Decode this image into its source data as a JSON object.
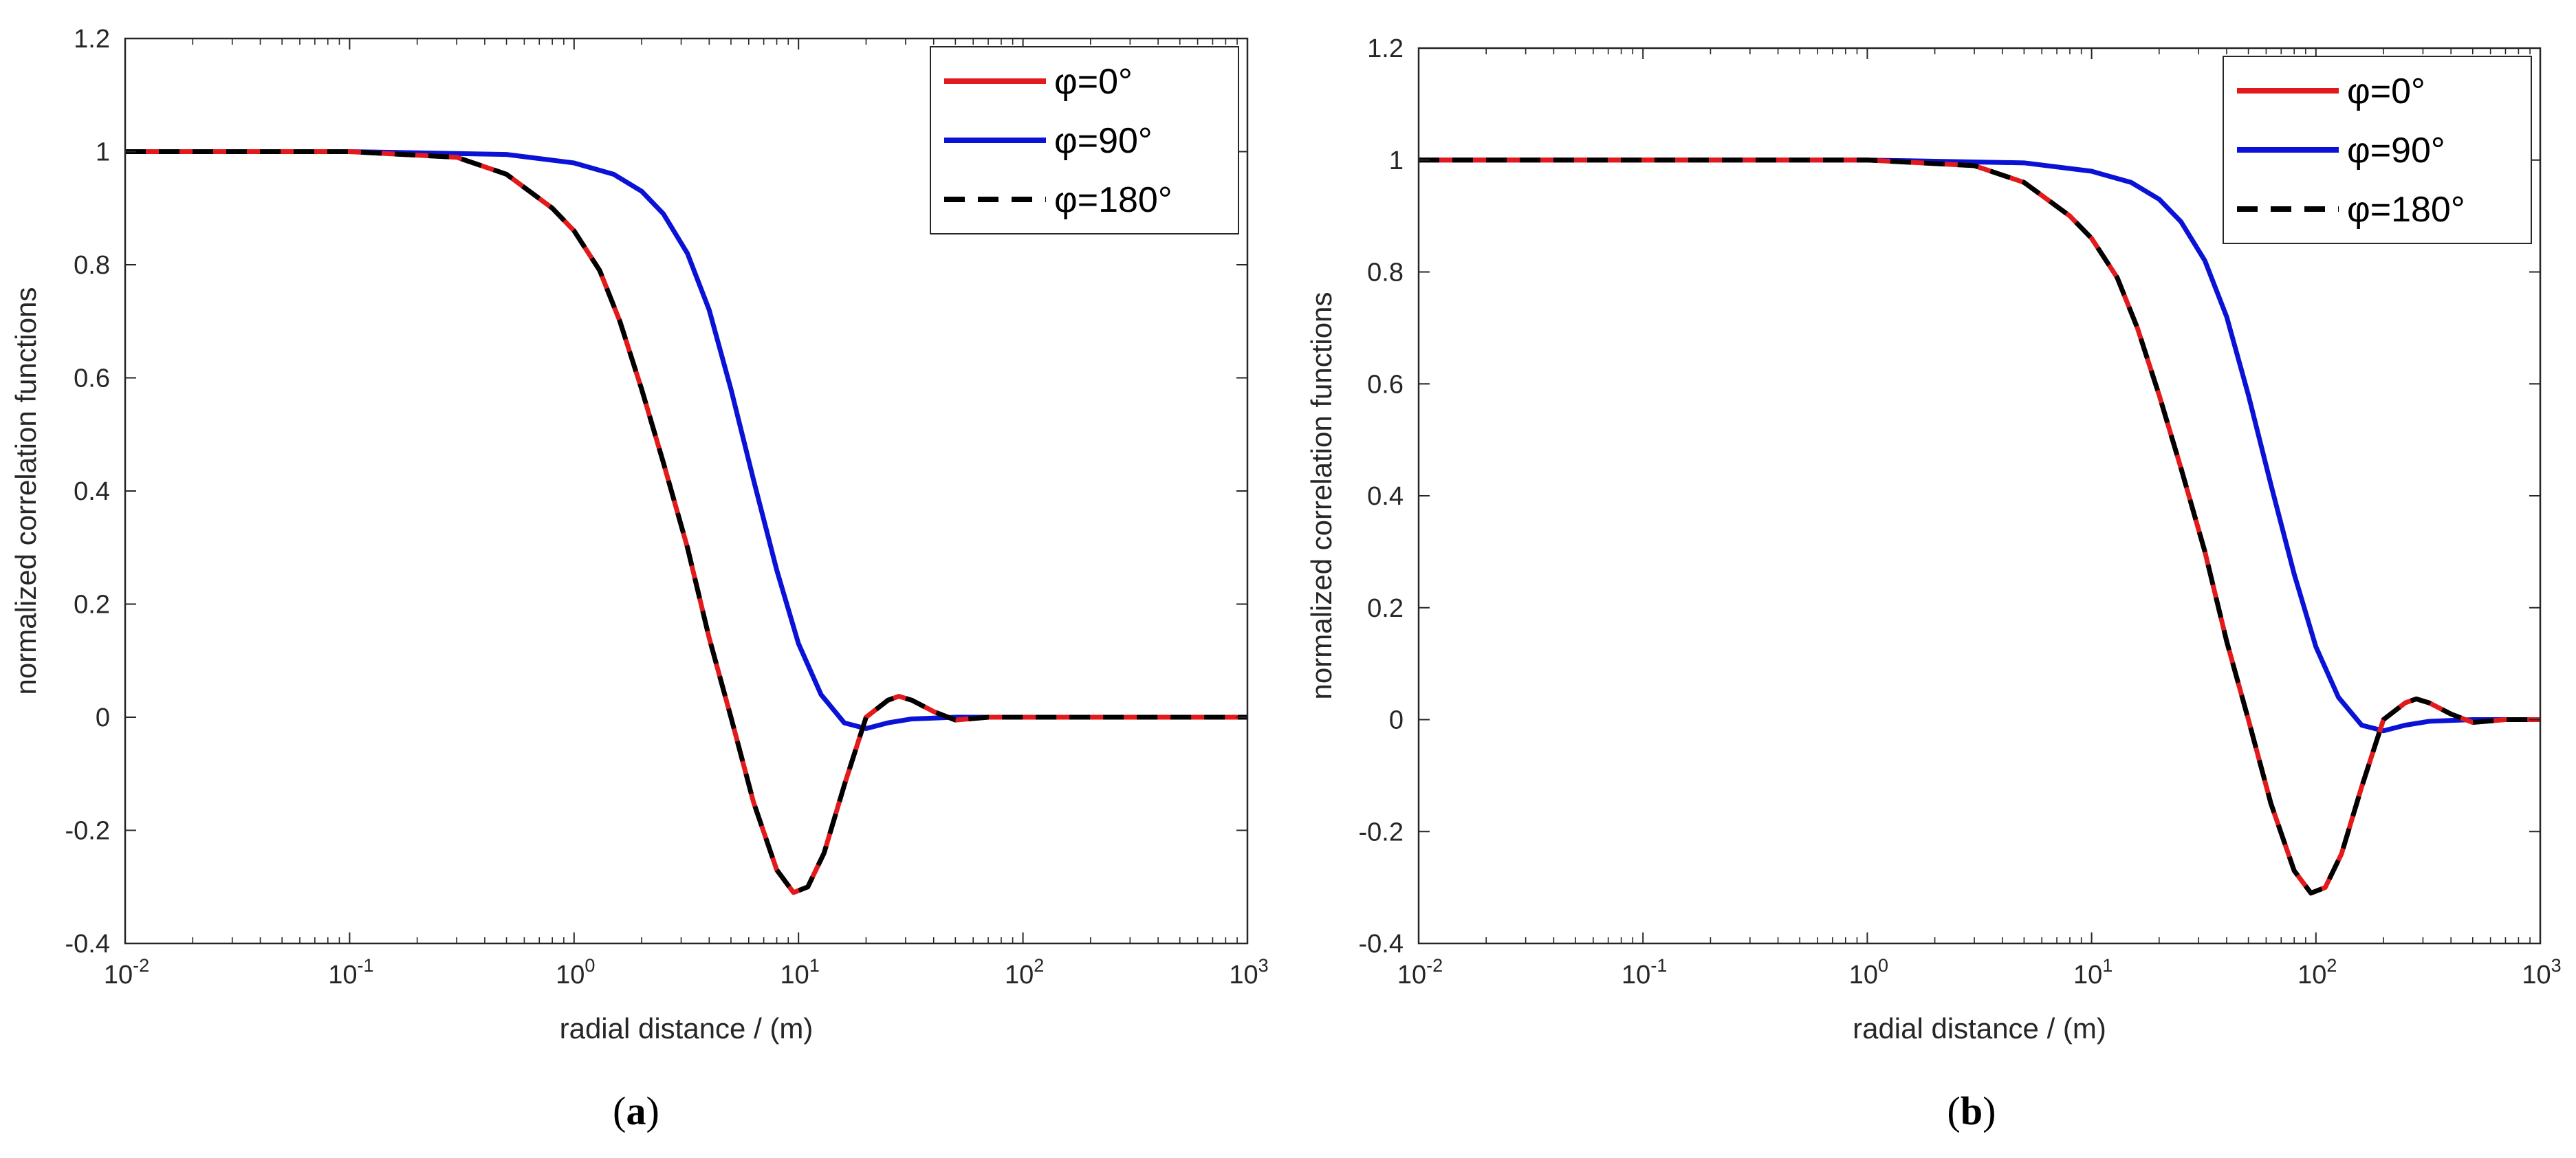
{
  "chart_data": [
    {
      "type": "line",
      "panel_label": "a",
      "xscale": "log",
      "xlim": [
        0.01,
        1000
      ],
      "ylim": [
        -0.4,
        1.2
      ],
      "x_ticks": [
        0.01,
        0.1,
        1,
        10,
        100,
        1000
      ],
      "x_tick_labels": [
        [
          "10",
          "-2"
        ],
        [
          "10",
          "-1"
        ],
        [
          "10",
          "0"
        ],
        [
          "10",
          "1"
        ],
        [
          "10",
          "2"
        ],
        [
          "10",
          "3"
        ]
      ],
      "y_ticks": [
        -0.4,
        -0.2,
        0,
        0.2,
        0.4,
        0.6,
        0.8,
        1,
        1.2
      ],
      "y_tick_labels": [
        "-0.4",
        "-0.2",
        "0",
        "0.2",
        "0.4",
        "0.6",
        "0.8",
        "1",
        "1.2"
      ],
      "xlabel": "radial distance / (m)",
      "ylabel": "normalized correlation functions",
      "legend_position": "top-right",
      "series": [
        {
          "name": "φ=0°",
          "color": "#e31a1c",
          "style": "solid",
          "x": [
            0.01,
            0.1,
            0.3,
            0.5,
            0.8,
            1.0,
            1.3,
            1.6,
            2.0,
            2.5,
            3.2,
            4.0,
            5.0,
            6.3,
            8.0,
            9.5,
            11.0,
            13.0,
            16.0,
            20.0,
            25.0,
            28.0,
            32.0,
            40.0,
            50.0,
            70.0,
            1000.0
          ],
          "y": [
            1.0,
            1.0,
            0.99,
            0.96,
            0.9,
            0.86,
            0.79,
            0.7,
            0.58,
            0.45,
            0.3,
            0.14,
            0.0,
            -0.15,
            -0.27,
            -0.31,
            -0.3,
            -0.24,
            -0.12,
            0.0,
            0.03,
            0.037,
            0.03,
            0.01,
            -0.005,
            0.0,
            0.0
          ]
        },
        {
          "name": "φ=90°",
          "color": "#0a12d6",
          "style": "solid",
          "x": [
            0.01,
            0.1,
            0.5,
            1.0,
            1.5,
            2.0,
            2.5,
            3.2,
            4.0,
            5.0,
            6.3,
            8.0,
            10.0,
            12.6,
            16.0,
            20.0,
            25.0,
            32.0,
            50.0,
            1000.0
          ],
          "y": [
            1.0,
            1.0,
            0.995,
            0.98,
            0.96,
            0.93,
            0.89,
            0.82,
            0.72,
            0.58,
            0.42,
            0.26,
            0.13,
            0.04,
            -0.01,
            -0.02,
            -0.01,
            -0.003,
            0.0,
            0.0
          ]
        },
        {
          "name": "φ=180°",
          "color": "#000000",
          "style": "dashed",
          "x": [
            0.01,
            0.1,
            0.3,
            0.5,
            0.8,
            1.0,
            1.3,
            1.6,
            2.0,
            2.5,
            3.2,
            4.0,
            5.0,
            6.3,
            8.0,
            9.5,
            11.0,
            13.0,
            16.0,
            20.0,
            25.0,
            28.0,
            32.0,
            40.0,
            50.0,
            70.0,
            1000.0
          ],
          "y": [
            1.0,
            1.0,
            0.99,
            0.96,
            0.9,
            0.86,
            0.79,
            0.7,
            0.58,
            0.45,
            0.3,
            0.14,
            0.0,
            -0.15,
            -0.27,
            -0.31,
            -0.3,
            -0.24,
            -0.12,
            0.0,
            0.03,
            0.037,
            0.03,
            0.01,
            -0.005,
            0.0,
            0.0
          ]
        }
      ]
    },
    {
      "type": "line",
      "panel_label": "b",
      "xscale": "log",
      "xlim": [
        0.01,
        1000
      ],
      "ylim": [
        -0.4,
        1.2
      ],
      "x_ticks": [
        0.01,
        0.1,
        1,
        10,
        100,
        1000
      ],
      "x_tick_labels": [
        [
          "10",
          "-2"
        ],
        [
          "10",
          "-1"
        ],
        [
          "10",
          "0"
        ],
        [
          "10",
          "1"
        ],
        [
          "10",
          "2"
        ],
        [
          "10",
          "3"
        ]
      ],
      "y_ticks": [
        -0.4,
        -0.2,
        0,
        0.2,
        0.4,
        0.6,
        0.8,
        1,
        1.2
      ],
      "y_tick_labels": [
        "-0.4",
        "-0.2",
        "0",
        "0.2",
        "0.4",
        "0.6",
        "0.8",
        "1",
        "1.2"
      ],
      "xlabel": "radial distance / (m)",
      "ylabel": "normalized correlation functions",
      "legend_position": "top-right",
      "series": [
        {
          "name": "φ=0°",
          "color": "#e31a1c",
          "style": "solid",
          "x": [
            0.01,
            1.0,
            3.0,
            5.0,
            8.0,
            10.0,
            13.0,
            16.0,
            20.0,
            25.0,
            32.0,
            40.0,
            50.0,
            63.0,
            80.0,
            95.0,
            110.0,
            130.0,
            160.0,
            200.0,
            250.0,
            280.0,
            320.0,
            400.0,
            500.0,
            700.0,
            1000.0
          ],
          "y": [
            1.0,
            1.0,
            0.99,
            0.96,
            0.9,
            0.86,
            0.79,
            0.7,
            0.58,
            0.45,
            0.3,
            0.14,
            0.0,
            -0.15,
            -0.27,
            -0.31,
            -0.3,
            -0.24,
            -0.12,
            0.0,
            0.03,
            0.037,
            0.03,
            0.01,
            -0.005,
            0.0,
            0.0
          ]
        },
        {
          "name": "φ=90°",
          "color": "#0a12d6",
          "style": "solid",
          "x": [
            0.01,
            1.0,
            5.0,
            10.0,
            15.0,
            20.0,
            25.0,
            32.0,
            40.0,
            50.0,
            63.0,
            80.0,
            100.0,
            126.0,
            160.0,
            200.0,
            250.0,
            320.0,
            500.0,
            1000.0
          ],
          "y": [
            1.0,
            1.0,
            0.995,
            0.98,
            0.96,
            0.93,
            0.89,
            0.82,
            0.72,
            0.58,
            0.42,
            0.26,
            0.13,
            0.04,
            -0.01,
            -0.02,
            -0.01,
            -0.003,
            0.0,
            0.0
          ]
        },
        {
          "name": "φ=180°",
          "color": "#000000",
          "style": "dashed",
          "x": [
            0.01,
            1.0,
            3.0,
            5.0,
            8.0,
            10.0,
            13.0,
            16.0,
            20.0,
            25.0,
            32.0,
            40.0,
            50.0,
            63.0,
            80.0,
            95.0,
            110.0,
            130.0,
            160.0,
            200.0,
            250.0,
            280.0,
            320.0,
            400.0,
            500.0,
            700.0,
            1000.0
          ],
          "y": [
            1.0,
            1.0,
            0.99,
            0.96,
            0.9,
            0.86,
            0.79,
            0.7,
            0.58,
            0.45,
            0.3,
            0.14,
            0.0,
            -0.15,
            -0.27,
            -0.31,
            -0.3,
            -0.24,
            -0.12,
            0.0,
            0.03,
            0.037,
            0.03,
            0.01,
            -0.005,
            0.0,
            0.0
          ]
        }
      ]
    }
  ]
}
